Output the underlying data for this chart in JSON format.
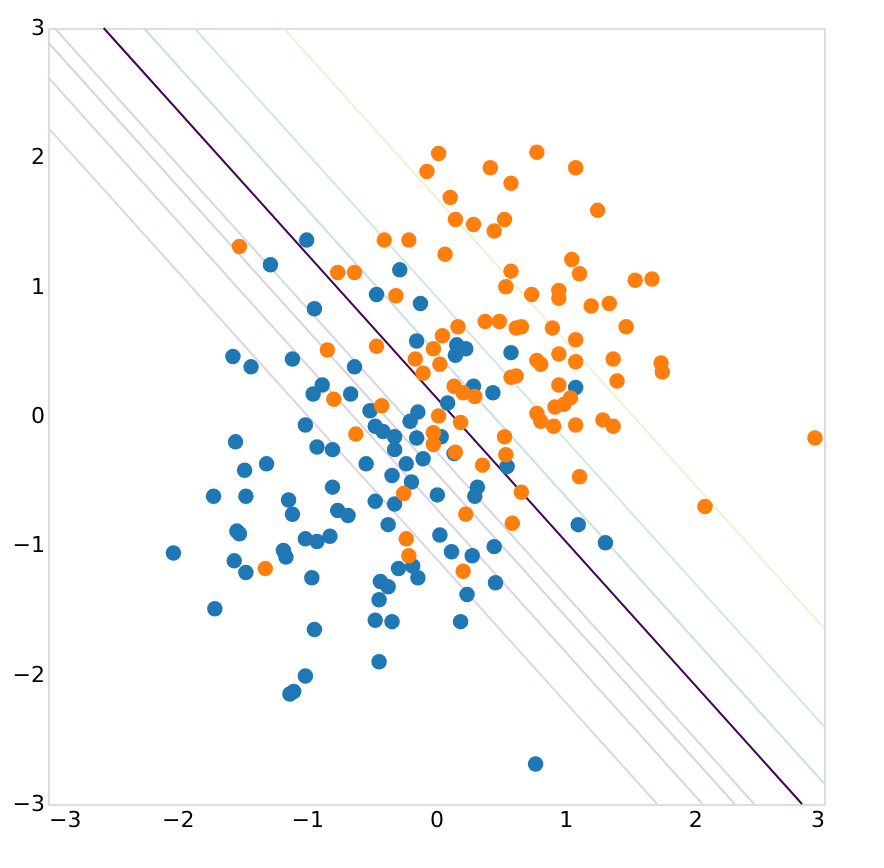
{
  "chart_data": {
    "type": "scatter",
    "xlim": [
      -3,
      3
    ],
    "ylim": [
      -3,
      3
    ],
    "xticks": [
      -3,
      -2,
      -1,
      0,
      1,
      2,
      3
    ],
    "yticks": [
      -3,
      -2,
      -1,
      0,
      1,
      2,
      3
    ],
    "grid": false,
    "series": [
      {
        "type": "line",
        "color": "#eef2cc",
        "x": [
          -1.18,
          3
        ],
        "values": [
          3,
          -1.64
        ]
      },
      {
        "type": "line",
        "color": "#cfeadc",
        "x": [
          -1.87,
          3
        ],
        "values": [
          3,
          -2.4
        ]
      },
      {
        "type": "line",
        "color": "#c6e2e0",
        "x": [
          -2.26,
          3
        ],
        "values": [
          3,
          -2.84
        ]
      },
      {
        "type": "line",
        "color": "#d2d8e4",
        "x": [
          -2.95,
          2.46
        ],
        "values": [
          3,
          -3
        ]
      },
      {
        "type": "line",
        "color": "#d6d2e4",
        "x": [
          -3,
          2.31
        ],
        "values": [
          2.89,
          -3
        ]
      },
      {
        "type": "line",
        "color": "#dad2e6",
        "x": [
          -3,
          2.06
        ],
        "values": [
          2.62,
          -3
        ]
      },
      {
        "type": "line",
        "color": "#ddd4e8",
        "x": [
          -3,
          1.71
        ],
        "values": [
          2.23,
          -3
        ]
      },
      {
        "type": "line",
        "color": "#440154",
        "x": [
          -2.57,
          2.83
        ],
        "values": [
          3,
          -3
        ]
      },
      {
        "marker": "circle",
        "color": "#1f77b4",
        "x": [
          -1.0,
          -1.28,
          -0.28,
          -0.46,
          -0.12,
          -0.94,
          -1.57,
          -1.43,
          -1.11,
          -0.15,
          0.16,
          0.23,
          0.15,
          0.58,
          -0.63,
          -0.88,
          -0.95,
          -0.66,
          0.44,
          0.29,
          1.08,
          -0.51,
          -0.14,
          0.09,
          -1.01,
          -0.47,
          -0.41,
          -0.32,
          -0.2,
          -0.15,
          0.04,
          -1.55,
          -1.31,
          -0.92,
          -0.8,
          -0.54,
          -0.32,
          -0.23,
          -0.1,
          0.14,
          -1.48,
          -0.34,
          -0.19,
          -0.8,
          0.32,
          0.3,
          0.55,
          -1.72,
          -1.47,
          -0.47,
          -0.32,
          0.01,
          -1.14,
          -1.11,
          -0.76,
          -0.68,
          -0.37,
          -0.82,
          -1.01,
          -0.92,
          0.03,
          -1.54,
          -1.52,
          1.1,
          1.31,
          0.45,
          0.12,
          0.28,
          -1.18,
          -1.16,
          -2.03,
          -1.56,
          -1.47,
          -0.29,
          -0.14,
          -0.18,
          -0.96,
          -0.43,
          -0.37,
          0.46,
          0.24,
          -1.71,
          -0.44,
          -0.47,
          -0.34,
          0.19,
          -0.94,
          -0.44,
          -1.01,
          -1.13,
          -1.1,
          0.77
        ],
        "values": [
          1.36,
          1.17,
          1.13,
          0.94,
          0.87,
          0.83,
          0.46,
          0.38,
          0.44,
          0.58,
          0.55,
          0.52,
          0.47,
          0.49,
          0.38,
          0.24,
          0.17,
          0.17,
          0.18,
          0.23,
          0.22,
          0.04,
          0.03,
          0.1,
          -0.07,
          -0.08,
          -0.12,
          -0.16,
          -0.04,
          -0.17,
          -0.16,
          -0.2,
          -0.37,
          -0.24,
          -0.26,
          -0.37,
          -0.26,
          -0.37,
          -0.33,
          -0.29,
          -0.42,
          -0.46,
          -0.51,
          -0.55,
          -0.55,
          -0.62,
          -0.39,
          -0.62,
          -0.62,
          -0.66,
          -0.68,
          -0.61,
          -0.65,
          -0.76,
          -0.73,
          -0.77,
          -0.84,
          -0.93,
          -0.95,
          -0.97,
          -0.92,
          -0.89,
          -0.91,
          -0.84,
          -0.98,
          -1.01,
          -1.05,
          -1.08,
          -1.04,
          -1.09,
          -1.06,
          -1.12,
          -1.21,
          -1.18,
          -1.25,
          -1.16,
          -1.25,
          -1.28,
          -1.32,
          -1.29,
          -1.38,
          -1.49,
          -1.42,
          -1.58,
          -1.59,
          -1.59,
          -1.65,
          -1.9,
          -2.01,
          -2.15,
          -2.13,
          -2.69
        ]
      },
      {
        "marker": "circle",
        "color": "#ff7f0e",
        "x": [
          0.02,
          -0.07,
          0.42,
          0.78,
          1.08,
          0.58,
          0.11,
          1.25,
          0.15,
          0.29,
          0.45,
          0.53,
          -0.4,
          -0.21,
          0.07,
          -1.52,
          -0.76,
          -0.63,
          0.58,
          1.05,
          1.11,
          0.54,
          0.74,
          0.95,
          0.95,
          -0.31,
          1.54,
          1.67,
          1.2,
          1.34,
          0.17,
          0.05,
          0.38,
          0.49,
          0.62,
          0.66,
          0.9,
          1.47,
          -0.84,
          -0.46,
          -0.02,
          1.08,
          -0.16,
          0.03,
          -0.1,
          0.78,
          0.81,
          0.95,
          1.08,
          1.37,
          1.74,
          1.75,
          1.4,
          0.58,
          0.62,
          0.95,
          0.14,
          0.21,
          0.3,
          1.04,
          0.99,
          0.92,
          -0.79,
          -0.42,
          0.02,
          0.78,
          0.81,
          0.91,
          1.08,
          1.29,
          1.37,
          0.19,
          -0.62,
          -0.02,
          -0.02,
          0.15,
          0.53,
          0.54,
          0.36,
          2.93,
          1.11,
          0.66,
          -0.25,
          0.23,
          0.59,
          2.08,
          -0.23,
          -0.21,
          0.21,
          -1.32
        ],
        "values": [
          2.03,
          1.89,
          1.92,
          2.04,
          1.92,
          1.8,
          1.69,
          1.59,
          1.52,
          1.48,
          1.43,
          1.52,
          1.36,
          1.36,
          1.25,
          1.31,
          1.11,
          1.11,
          1.12,
          1.21,
          1.1,
          1.0,
          0.94,
          0.97,
          0.91,
          0.93,
          1.05,
          1.06,
          0.85,
          0.87,
          0.69,
          0.62,
          0.73,
          0.73,
          0.68,
          0.69,
          0.68,
          0.69,
          0.51,
          0.54,
          0.52,
          0.59,
          0.44,
          0.4,
          0.33,
          0.43,
          0.4,
          0.48,
          0.42,
          0.44,
          0.41,
          0.34,
          0.27,
          0.3,
          0.31,
          0.24,
          0.23,
          0.18,
          0.15,
          0.14,
          0.09,
          0.07,
          0.13,
          0.08,
          0.0,
          0.02,
          -0.04,
          -0.08,
          -0.07,
          -0.03,
          -0.08,
          -0.05,
          -0.14,
          -0.13,
          -0.22,
          -0.28,
          -0.16,
          -0.3,
          -0.38,
          -0.17,
          -0.47,
          -0.59,
          -0.6,
          -0.76,
          -0.83,
          -0.7,
          -0.95,
          -1.08,
          -1.2,
          -1.18
        ]
      }
    ]
  }
}
